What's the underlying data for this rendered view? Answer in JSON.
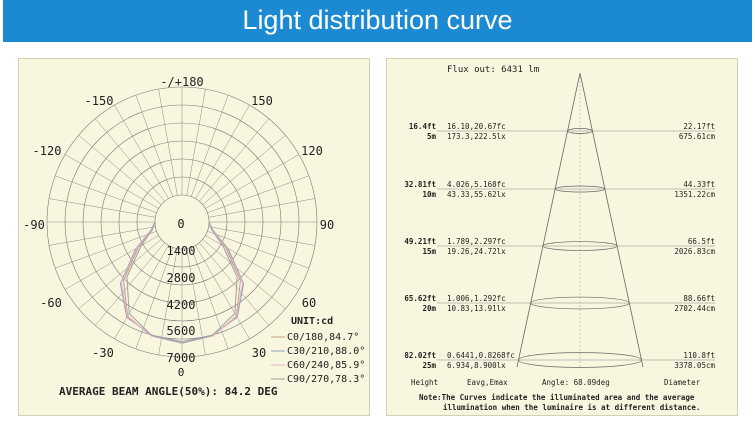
{
  "banner": {
    "title": "Light distribution curve"
  },
  "polar": {
    "angle_labels": [
      "-/+180",
      "-150",
      "150",
      "-120",
      "120",
      "-90",
      "90",
      "-60",
      "60",
      "-30",
      "30",
      "0"
    ],
    "radial_labels": [
      "0",
      "1400",
      "2800",
      "4200",
      "5600",
      "7000"
    ],
    "unit": "UNIT:cd",
    "legend": [
      "C0/180,84.7°",
      "C30/210,88.0°",
      "C60/240,85.9°",
      "C90/270,78.3°"
    ],
    "beam_angle": "AVERAGE BEAM ANGLE(50%): 84.2 DEG",
    "colors": [
      "#c9a080",
      "#8aa0c0",
      "#e6b0c8",
      "#a0a0a0"
    ]
  },
  "cone": {
    "flux": "Flux out: 6431 lm",
    "rows": [
      {
        "ft": "16.4ft",
        "m": "5m",
        "fc": "16.10,20.67fc",
        "lx": "173.3,222.5lx",
        "dft": "22.17ft",
        "dcm": "675.61cm"
      },
      {
        "ft": "32.81ft",
        "m": "10m",
        "fc": "4.026,5.168fc",
        "lx": "43.33,55.62lx",
        "dft": "44.33ft",
        "dcm": "1351.22cm"
      },
      {
        "ft": "49.21ft",
        "m": "15m",
        "fc": "1.789,2.297fc",
        "lx": "19.26,24.72lx",
        "dft": "66.5ft",
        "dcm": "2026.83cm"
      },
      {
        "ft": "65.62ft",
        "m": "20m",
        "fc": "1.006,1.292fc",
        "lx": "10.83,13.91lx",
        "dft": "88.66ft",
        "dcm": "2702.44cm"
      },
      {
        "ft": "82.02ft",
        "m": "25m",
        "fc": "0.6441,0.8268fc",
        "lx": "6.934,8.900lx",
        "dft": "110.8ft",
        "dcm": "3378.05cm"
      }
    ],
    "footer": [
      "Height",
      "Eavg,Emax",
      "Angle: 68.09deg",
      "Diameter"
    ],
    "note1": "Note:The Curves indicate the illuminated area and the average",
    "note2": "illumination when the luminaire is at different distance."
  },
  "chart_data": [
    {
      "type": "polar",
      "title": "",
      "unit": "UNIT:cd",
      "radial_ticks": [
        0,
        1400,
        2800,
        4200,
        5600,
        7000
      ],
      "angle_ticks": [
        -180,
        -150,
        -120,
        -90,
        -60,
        -30,
        0,
        30,
        60,
        90,
        120,
        150,
        180
      ],
      "series": [
        {
          "name": "C0/180,84.7°",
          "angles": [
            -90,
            -75,
            -60,
            -45,
            -30,
            -15,
            0,
            15,
            30,
            45,
            60,
            75,
            90
          ],
          "values": [
            0,
            300,
            1500,
            3600,
            5300,
            5900,
            6100,
            5900,
            5300,
            3600,
            1500,
            300,
            0
          ]
        },
        {
          "name": "C30/210,88.0°",
          "angles": [
            -90,
            -75,
            -60,
            -45,
            -30,
            -15,
            0,
            15,
            30,
            45,
            60,
            75,
            90
          ],
          "values": [
            0,
            350,
            1700,
            3900,
            5400,
            5850,
            6000,
            5850,
            5400,
            3900,
            1700,
            350,
            0
          ]
        },
        {
          "name": "C60/240,85.9°",
          "angles": [
            -90,
            -75,
            -60,
            -45,
            -30,
            -15,
            0,
            15,
            30,
            45,
            60,
            75,
            90
          ],
          "values": [
            0,
            320,
            1600,
            3800,
            5350,
            5900,
            6050,
            5900,
            5350,
            3800,
            1600,
            320,
            0
          ]
        },
        {
          "name": "C90/270,78.3°",
          "angles": [
            -90,
            -75,
            -60,
            -45,
            -30,
            -15,
            0,
            15,
            30,
            45,
            60,
            75,
            90
          ],
          "values": [
            0,
            250,
            1300,
            3300,
            5100,
            5850,
            6100,
            5850,
            5100,
            3300,
            1300,
            250,
            0
          ]
        }
      ],
      "annotation": "AVERAGE BEAM ANGLE(50%): 84.2 DEG"
    },
    {
      "type": "table",
      "title": "Flux out: 6431 lm",
      "columns": [
        "Height",
        "Eavg,Emax",
        "Angle: 68.09deg",
        "Diameter"
      ],
      "rows": [
        [
          "16.4ft / 5m",
          "16.10,20.67fc / 173.3,222.5lx",
          "",
          "22.17ft / 675.61cm"
        ],
        [
          "32.81ft / 10m",
          "4.026,5.168fc / 43.33,55.62lx",
          "",
          "44.33ft / 1351.22cm"
        ],
        [
          "49.21ft / 15m",
          "1.789,2.297fc / 19.26,24.72lx",
          "",
          "66.5ft / 2026.83cm"
        ],
        [
          "65.62ft / 20m",
          "1.006,1.292fc / 10.83,13.91lx",
          "",
          "88.66ft / 2702.44cm"
        ],
        [
          "82.02ft / 25m",
          "0.6441,0.8268fc / 6.934,8.900lx",
          "",
          "110.8ft / 3378.05cm"
        ]
      ]
    }
  ]
}
